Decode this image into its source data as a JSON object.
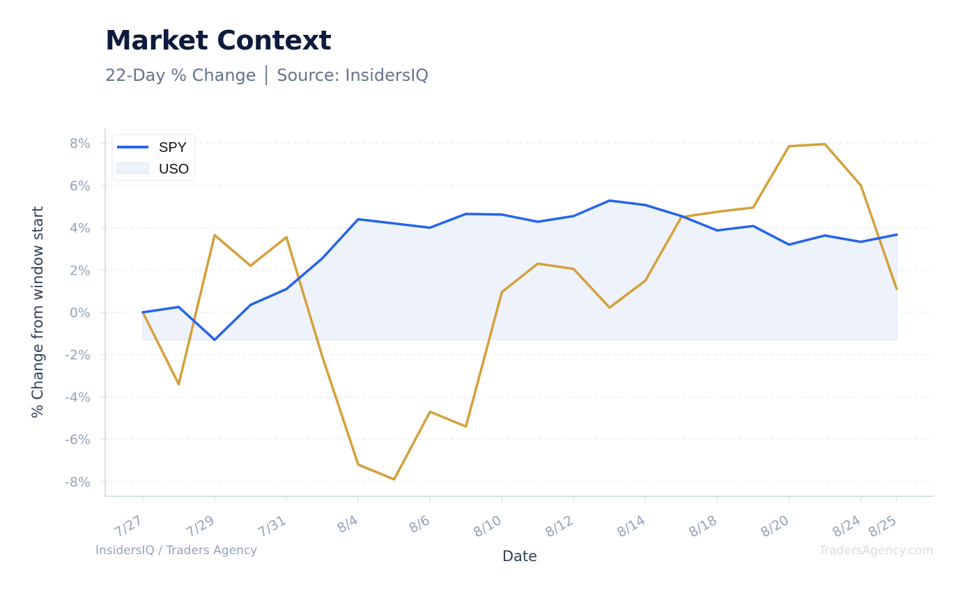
{
  "title": "Market Context",
  "subtitle": "22-Day % Change │ Source: InsidersIQ",
  "footer_left": "InsidersIQ / Traders Agency",
  "footer_right": "TradersAgency.com",
  "colors": {
    "spy": "#2563eb",
    "uso": "#d4a03a",
    "spy_fill": "#eef2fb",
    "grid": "#e5e7eb",
    "axis": "#cbd5e1"
  },
  "chart_data": {
    "type": "line",
    "title": "Market Context",
    "subtitle": "22-Day % Change │ Source: InsidersIQ",
    "xlabel": "Date",
    "ylabel": "% Change from window start",
    "ylim": [
      -8.7,
      8.7
    ],
    "yticks": [
      -8,
      -6,
      -4,
      -2,
      0,
      2,
      4,
      6,
      8
    ],
    "ytick_labels": [
      "-8%",
      "-6%",
      "-4%",
      "-2%",
      "0%",
      "2%",
      "4%",
      "6%",
      "8%"
    ],
    "x_tick_indices": [
      0,
      2,
      4,
      6,
      8,
      10,
      12,
      14,
      16,
      18,
      20,
      21
    ],
    "x_tick_labels": [
      "7/27",
      "7/29",
      "7/31",
      "8/4",
      "8/6",
      "8/10",
      "8/12",
      "8/14",
      "8/18",
      "8/20",
      "8/24",
      "8/25"
    ],
    "legend": "top-left",
    "grid": true,
    "series": [
      {
        "name": "SPY",
        "values": [
          0.0,
          0.25,
          -1.3,
          0.35,
          1.1,
          2.55,
          4.4,
          4.2,
          4.0,
          4.65,
          4.62,
          4.28,
          4.55,
          5.28,
          5.07,
          4.55,
          3.87,
          4.08,
          3.2,
          3.63,
          3.33,
          3.67
        ]
      },
      {
        "name": "USO",
        "values": [
          0.0,
          -3.4,
          3.65,
          2.2,
          3.55,
          -2.1,
          -7.2,
          -7.9,
          -4.7,
          -5.4,
          0.95,
          2.3,
          2.05,
          0.22,
          1.5,
          4.5,
          4.75,
          4.95,
          7.85,
          7.95,
          6.0,
          1.1
        ]
      }
    ]
  }
}
